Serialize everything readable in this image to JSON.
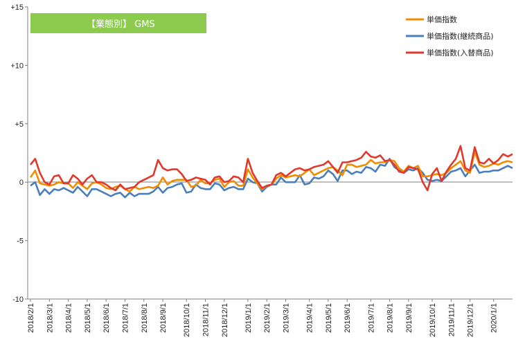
{
  "chart_data": {
    "type": "line",
    "title": "【業態別】 GMS",
    "title_box_color": "#8CCB4E",
    "ylim": [
      -10,
      15
    ],
    "yticks": [
      {
        "value": 15,
        "label": "+15"
      },
      {
        "value": 10,
        "label": "+10"
      },
      {
        "value": 5,
        "label": "+5"
      },
      {
        "value": 0,
        "label": "0"
      },
      {
        "value": -5,
        "label": "-5"
      },
      {
        "value": -10,
        "label": "-10"
      }
    ],
    "x_tick_labels": [
      "2018/2/1",
      "2018/3/1",
      "2018/4/1",
      "2018/5/1",
      "2018/6/1",
      "2018/7/1",
      "2018/8/1",
      "2018/9/1",
      "2018/10/1",
      "2018/11/1",
      "2018/12/1",
      "2019/1/1",
      "2019/2/1",
      "2019/3/1",
      "2019/4/1",
      "2019/5/1",
      "2019/6/1",
      "2019/7/1",
      "2019/8/1",
      "2019/9/1",
      "2019/10/1",
      "2019/11/1",
      "2019/12/1",
      "2020/1/1"
    ],
    "x_tick_positions": [
      0,
      4,
      8,
      12,
      16,
      20,
      24,
      28,
      33,
      37,
      41,
      46,
      50,
      54,
      59,
      63,
      67,
      72,
      76,
      80,
      85,
      89,
      93,
      98
    ],
    "point_count": 103,
    "legend_position": "top-right",
    "grid": "horizontal-none",
    "series": [
      {
        "name": "単価指数",
        "color": "#F08C00",
        "values": [
          0.4,
          1.0,
          -0.1,
          -0.2,
          -0.3,
          -0.2,
          0.0,
          -0.1,
          -0.1,
          -0.5,
          0.0,
          -0.3,
          -0.6,
          -0.1,
          0.0,
          -0.2,
          -0.5,
          -0.6,
          -0.4,
          -0.3,
          -0.6,
          -0.8,
          -0.4,
          -0.6,
          -0.5,
          -0.4,
          -0.5,
          -0.3,
          0.4,
          -0.2,
          0.1,
          0.2,
          0.2,
          0.2,
          -0.4,
          -0.3,
          0.2,
          -0.1,
          -0.1,
          0.2,
          0.3,
          -0.4,
          0.0,
          0.1,
          -0.3,
          -0.3,
          1.1,
          0.4,
          -0.1,
          -0.6,
          -0.3,
          -0.2,
          0.3,
          0.6,
          0.4,
          0.5,
          0.6,
          0.5,
          0.8,
          1.1,
          0.6,
          0.8,
          1.0,
          1.2,
          1.3,
          1.0,
          0.6,
          1.5,
          1.5,
          1.3,
          1.4,
          1.5,
          1.9,
          1.6,
          1.7,
          1.7,
          1.9,
          1.8,
          1.2,
          0.9,
          1.4,
          1.2,
          1.4,
          0.5,
          0.5,
          0.6,
          0.7,
          0.6,
          0.8,
          1.2,
          1.5,
          1.8,
          1.0,
          0.8,
          2.6,
          1.5,
          1.3,
          1.4,
          1.6,
          1.5,
          1.7,
          1.8,
          1.7
        ]
      },
      {
        "name": "単価指数(継続商品)",
        "color": "#4A7EBB",
        "values": [
          -0.3,
          0.0,
          -1.1,
          -0.6,
          -1.0,
          -0.6,
          -0.7,
          -0.5,
          -0.7,
          -0.9,
          -0.4,
          -0.8,
          -1.2,
          -0.6,
          -0.6,
          -0.8,
          -1.0,
          -1.2,
          -1.0,
          -0.9,
          -1.3,
          -0.9,
          -1.2,
          -1.0,
          -1.0,
          -1.0,
          -0.8,
          -0.4,
          -0.9,
          -0.5,
          -0.4,
          -0.2,
          -0.1,
          -0.9,
          -0.8,
          -0.2,
          -0.5,
          -0.6,
          -0.6,
          -0.1,
          -0.2,
          -0.7,
          -0.5,
          -0.4,
          -0.6,
          -0.6,
          0.3,
          0.0,
          -0.1,
          -0.8,
          -0.4,
          -0.2,
          -0.2,
          0.4,
          0.0,
          0.0,
          0.0,
          0.6,
          -0.2,
          -0.1,
          0.4,
          0.3,
          0.5,
          1.0,
          0.7,
          0.1,
          1.0,
          1.0,
          0.7,
          0.9,
          0.8,
          1.3,
          1.2,
          0.9,
          1.5,
          1.4,
          2.0,
          1.3,
          1.0,
          0.8,
          1.1,
          1.0,
          1.2,
          0.8,
          0.2,
          0.1,
          0.2,
          0.1,
          0.5,
          0.9,
          1.0,
          1.2,
          0.5,
          1.0,
          1.5,
          0.8,
          0.9,
          0.9,
          1.0,
          1.0,
          1.2,
          1.4,
          1.2
        ]
      },
      {
        "name": "単価指数(入替商品)",
        "color": "#E0382C",
        "values": [
          1.5,
          2.0,
          0.8,
          0.0,
          -0.2,
          0.5,
          0.6,
          -0.1,
          -0.1,
          0.6,
          0.3,
          -0.2,
          0.3,
          0.6,
          0.0,
          0.0,
          -0.2,
          -0.5,
          -0.7,
          -0.2,
          -0.6,
          -0.5,
          -0.4,
          0.0,
          0.2,
          0.4,
          0.6,
          1.9,
          1.2,
          1.0,
          1.1,
          1.1,
          0.7,
          0.1,
          0.2,
          0.4,
          0.3,
          0.2,
          -0.2,
          0.4,
          0.5,
          0.0,
          0.1,
          0.5,
          0.4,
          0.0,
          2.0,
          0.8,
          0.1,
          -0.5,
          -0.3,
          -0.2,
          0.6,
          0.8,
          0.5,
          0.8,
          1.1,
          1.2,
          1.0,
          1.1,
          1.3,
          1.4,
          1.5,
          1.8,
          1.3,
          0.8,
          1.7,
          1.7,
          1.8,
          1.9,
          2.1,
          2.6,
          2.2,
          2.1,
          2.3,
          1.8,
          1.9,
          1.5,
          0.9,
          0.8,
          1.3,
          1.2,
          1.1,
          0.0,
          -0.7,
          0.7,
          1.2,
          0.1,
          0.9,
          1.5,
          2.0,
          3.1,
          1.2,
          1.0,
          3.0,
          1.7,
          1.6,
          2.0,
          1.6,
          1.9,
          2.4,
          2.2,
          2.4
        ]
      }
    ]
  }
}
